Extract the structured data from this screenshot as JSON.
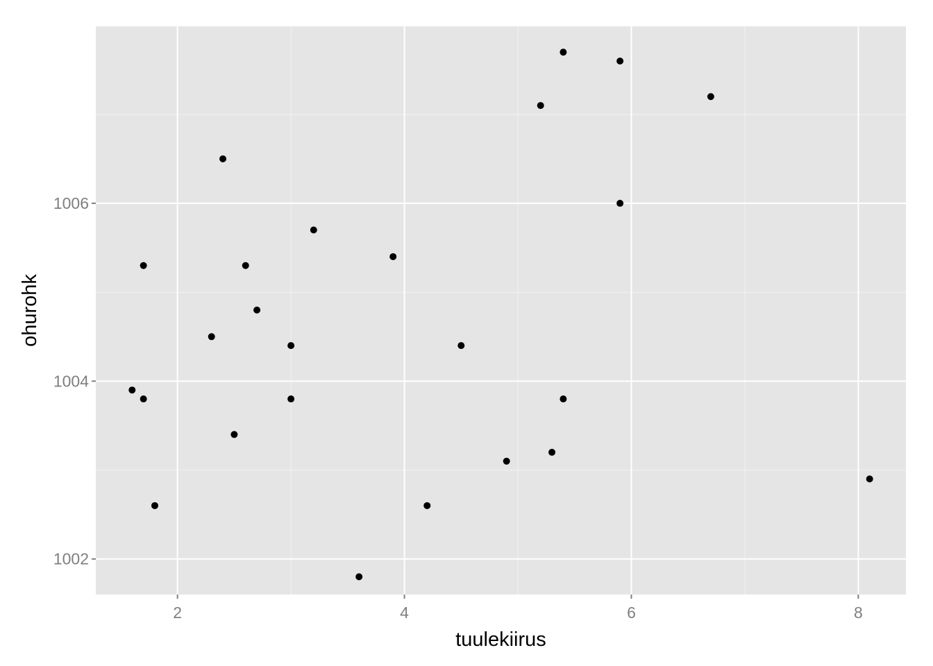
{
  "chart_data": {
    "type": "scatter",
    "title": "",
    "xlabel": "tuulekiirus",
    "ylabel": "ohurohk",
    "xlim": [
      1.28,
      8.42
    ],
    "ylim": [
      1001.6,
      1007.99
    ],
    "x_ticks": [
      2,
      4,
      6,
      8
    ],
    "y_ticks": [
      1002,
      1004,
      1006
    ],
    "x_tick_labels": [
      "2",
      "4",
      "6",
      "8"
    ],
    "y_tick_labels": [
      "1002",
      "1004",
      "1006"
    ],
    "grid": true,
    "legend": "none",
    "colors": {
      "panel": "#e5e5e5",
      "grid_major": "#ffffff",
      "grid_minor": "#f2f2f2",
      "point": "#000000",
      "tick": "#7f7f7f"
    },
    "points": [
      {
        "x": 5.4,
        "y": 1007.7
      },
      {
        "x": 5.9,
        "y": 1007.6
      },
      {
        "x": 6.7,
        "y": 1007.2
      },
      {
        "x": 5.2,
        "y": 1007.1
      },
      {
        "x": 2.4,
        "y": 1006.5
      },
      {
        "x": 5.9,
        "y": 1006.0
      },
      {
        "x": 3.2,
        "y": 1005.7
      },
      {
        "x": 3.9,
        "y": 1005.4
      },
      {
        "x": 1.7,
        "y": 1005.3
      },
      {
        "x": 2.6,
        "y": 1005.3
      },
      {
        "x": 2.7,
        "y": 1004.8
      },
      {
        "x": 2.3,
        "y": 1004.5
      },
      {
        "x": 3.0,
        "y": 1004.4
      },
      {
        "x": 4.5,
        "y": 1004.4
      },
      {
        "x": 1.6,
        "y": 1003.9
      },
      {
        "x": 1.7,
        "y": 1003.8
      },
      {
        "x": 3.0,
        "y": 1003.8
      },
      {
        "x": 5.4,
        "y": 1003.8
      },
      {
        "x": 2.5,
        "y": 1003.4
      },
      {
        "x": 5.3,
        "y": 1003.2
      },
      {
        "x": 4.9,
        "y": 1003.1
      },
      {
        "x": 8.1,
        "y": 1002.9
      },
      {
        "x": 1.8,
        "y": 1002.6
      },
      {
        "x": 4.2,
        "y": 1002.6
      },
      {
        "x": 3.6,
        "y": 1001.8
      }
    ]
  }
}
